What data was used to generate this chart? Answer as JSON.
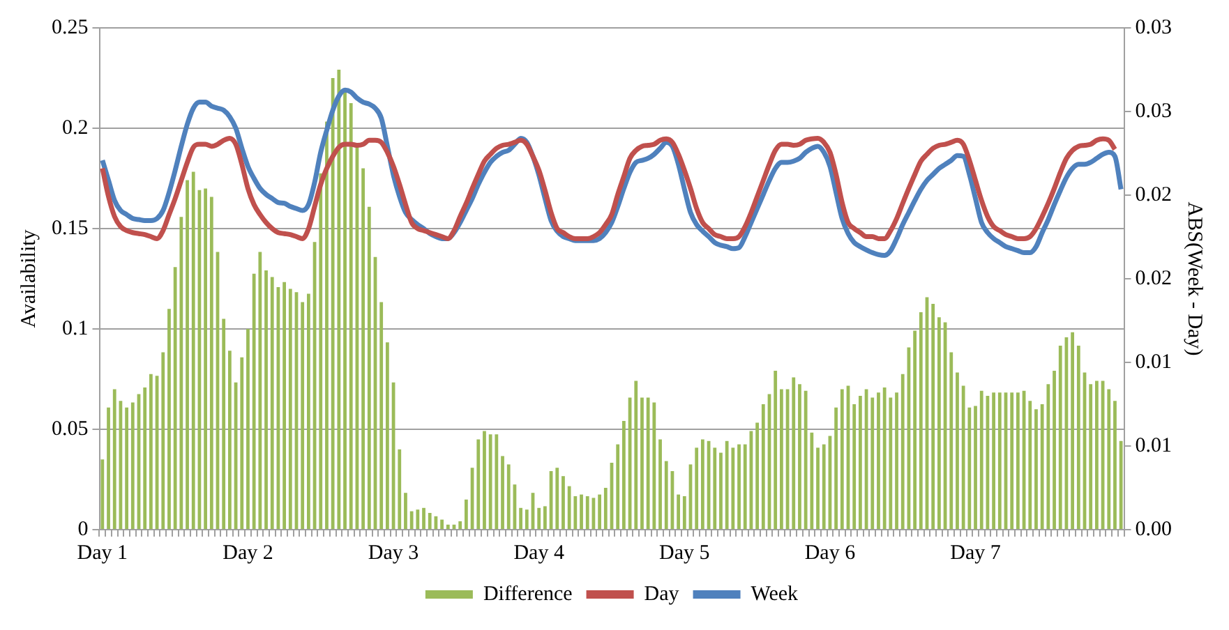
{
  "chart_data": {
    "type": "bar",
    "ylabel": "Availability",
    "y2label": "ABS(Week - Day)",
    "categories": [
      "Day 1",
      null,
      null,
      null,
      null,
      null,
      null,
      null,
      null,
      null,
      null,
      null,
      null,
      null,
      null,
      null,
      null,
      null,
      null,
      null,
      null,
      null,
      null,
      null,
      "Day 2",
      null,
      null,
      null,
      null,
      null,
      null,
      null,
      null,
      null,
      null,
      null,
      null,
      null,
      null,
      null,
      null,
      null,
      null,
      null,
      null,
      null,
      null,
      null,
      "Day 3",
      null,
      null,
      null,
      null,
      null,
      null,
      null,
      null,
      null,
      null,
      null,
      null,
      null,
      null,
      null,
      null,
      null,
      null,
      null,
      null,
      null,
      null,
      null,
      "Day 4",
      null,
      null,
      null,
      null,
      null,
      null,
      null,
      null,
      null,
      null,
      null,
      null,
      null,
      null,
      null,
      null,
      null,
      null,
      null,
      null,
      null,
      null,
      null,
      "Day 5",
      null,
      null,
      null,
      null,
      null,
      null,
      null,
      null,
      null,
      null,
      null,
      null,
      null,
      null,
      null,
      null,
      null,
      null,
      null,
      null,
      null,
      null,
      null,
      "Day 6",
      null,
      null,
      null,
      null,
      null,
      null,
      null,
      null,
      null,
      null,
      null,
      null,
      null,
      null,
      null,
      null,
      null,
      null,
      null,
      null,
      null,
      null,
      null,
      "Day 7",
      null,
      null,
      null,
      null,
      null,
      null,
      null,
      null,
      null,
      null,
      null,
      null,
      null,
      null,
      null,
      null,
      null,
      null,
      null,
      null,
      null,
      null,
      null,
      null
    ],
    "ylim": [
      0,
      0.25
    ],
    "yticks": [
      0,
      0.05,
      {
        "value": 0.1,
        "label": "0.1"
      },
      0.15,
      {
        "value": 0.2,
        "label": "0.2"
      },
      0.25
    ],
    "y2lim": [
      0,
      0.03
    ],
    "y2ticks": [
      {
        "value": 0,
        "label": "0.00"
      },
      {
        "value": 0.005,
        "label": "0.01"
      },
      {
        "value": 0.01,
        "label": "0.01"
      },
      {
        "value": 0.015,
        "label": "0.02"
      },
      {
        "value": 0.02,
        "label": "0.02"
      },
      {
        "value": 0.025,
        "label": "0.03"
      },
      {
        "value": 0.03,
        "label": "0.03"
      }
    ],
    "grid": "y",
    "legend": "bottom",
    "series": [
      {
        "name": "Difference",
        "axis": "y2",
        "color": "#9bbb59",
        "values": [
          0.0042,
          0.0073,
          0.0084,
          0.0077,
          0.0073,
          0.0076,
          0.0081,
          0.0085,
          0.0093,
          0.0092,
          0.0106,
          0.0132,
          0.0157,
          0.0187,
          0.0209,
          0.0214,
          0.0203,
          0.0204,
          0.0199,
          0.0166,
          0.0126,
          0.0107,
          0.0088,
          0.0103,
          0.012,
          0.0153,
          0.0166,
          0.0155,
          0.0151,
          0.0145,
          0.0148,
          0.0144,
          0.0142,
          0.0136,
          0.0141,
          0.0172,
          0.0213,
          0.0244,
          0.027,
          0.0275,
          0.0264,
          0.0255,
          0.023,
          0.0216,
          0.0193,
          0.0163,
          0.0136,
          0.0112,
          0.0088,
          0.0048,
          0.0022,
          0.0011,
          0.0012,
          0.0013,
          0.001,
          0.0008,
          0.0006,
          0.0003,
          0.0003,
          0.0005,
          0.0018,
          0.0037,
          0.0054,
          0.0059,
          0.0057,
          0.0057,
          0.0044,
          0.0039,
          0.0027,
          0.0013,
          0.0012,
          0.0022,
          0.0013,
          0.0014,
          0.0035,
          0.0037,
          0.0032,
          0.0026,
          0.002,
          0.0021,
          0.002,
          0.0019,
          0.0021,
          0.0025,
          0.004,
          0.0051,
          0.0065,
          0.0079,
          0.0089,
          0.0079,
          0.0079,
          0.0076,
          0.0054,
          0.0041,
          0.0035,
          0.0021,
          0.002,
          0.0039,
          0.0049,
          0.0054,
          0.0053,
          0.0049,
          0.0046,
          0.0053,
          0.0049,
          0.0051,
          0.0051,
          0.0059,
          0.0064,
          0.0075,
          0.0081,
          0.0095,
          0.0084,
          0.0084,
          0.0091,
          0.0087,
          0.0083,
          0.0058,
          0.0049,
          0.0051,
          0.0056,
          0.0073,
          0.0084,
          0.0086,
          0.0075,
          0.008,
          0.0084,
          0.0079,
          0.0082,
          0.0085,
          0.0079,
          0.0082,
          0.0093,
          0.0109,
          0.0119,
          0.013,
          0.0139,
          0.0135,
          0.0127,
          0.0124,
          0.0106,
          0.0094,
          0.0086,
          0.0073,
          0.0074,
          0.0083,
          0.008,
          0.0082,
          0.0082,
          0.0082,
          0.0082,
          0.0082,
          0.0083,
          0.0077,
          0.0072,
          0.0075,
          0.0087,
          0.0095,
          0.011,
          0.0115,
          0.0118,
          0.011,
          0.0094,
          0.0087,
          0.0089,
          0.0089,
          0.0084,
          0.0077,
          0.0053
        ]
      },
      {
        "name": "Day",
        "type": "line",
        "color": "#c0504d",
        "values": [
          0.18,
          0.166,
          0.156,
          0.151,
          0.149,
          0.148,
          0.1475,
          0.147,
          0.146,
          0.145,
          0.149,
          0.157,
          0.165,
          0.174,
          0.183,
          0.1905,
          0.192,
          0.192,
          0.191,
          0.192,
          0.194,
          0.195,
          0.192,
          0.182,
          0.17,
          0.162,
          0.157,
          0.153,
          0.15,
          0.148,
          0.1475,
          0.147,
          0.146,
          0.145,
          0.15,
          0.161,
          0.172,
          0.18,
          0.186,
          0.1905,
          0.192,
          0.192,
          0.1915,
          0.192,
          0.194,
          0.194,
          0.193,
          0.188,
          0.181,
          0.172,
          0.162,
          0.153,
          0.15,
          0.149,
          0.148,
          0.147,
          0.146,
          0.145,
          0.149,
          0.156,
          0.1626,
          0.17,
          0.177,
          0.1836,
          0.187,
          0.19,
          0.1915,
          0.192,
          0.193,
          0.194,
          0.192,
          0.186,
          0.179,
          0.169,
          0.158,
          0.15,
          0.148,
          0.146,
          0.145,
          0.145,
          0.145,
          0.146,
          0.148,
          0.152,
          0.157,
          0.167,
          0.176,
          0.185,
          0.189,
          0.191,
          0.1915,
          0.192,
          0.194,
          0.1947,
          0.193,
          0.187,
          0.179,
          0.17,
          0.16,
          0.153,
          0.15,
          0.147,
          0.146,
          0.145,
          0.145,
          0.146,
          0.151,
          0.158,
          0.166,
          0.174,
          0.182,
          0.189,
          0.192,
          0.192,
          0.1915,
          0.192,
          0.194,
          0.1947,
          0.195,
          0.193,
          0.188,
          0.177,
          0.163,
          0.153,
          0.15,
          0.148,
          0.146,
          0.146,
          0.145,
          0.145,
          0.149,
          0.155,
          0.1626,
          0.17,
          0.177,
          0.1836,
          0.187,
          0.19,
          0.1915,
          0.192,
          0.193,
          0.194,
          0.192,
          0.184,
          0.174,
          0.164,
          0.156,
          0.151,
          0.149,
          0.147,
          0.146,
          0.145,
          0.145,
          0.146,
          0.15,
          0.156,
          0.1626,
          0.17,
          0.178,
          0.185,
          0.189,
          0.191,
          0.1915,
          0.192,
          0.194,
          0.1947,
          0.194,
          0.1895,
          null
        ]
      },
      {
        "name": "Week",
        "type": "line",
        "color": "#4f81bd",
        "values": [
          0.184,
          0.174,
          0.164,
          0.159,
          0.157,
          0.155,
          0.1545,
          0.154,
          0.154,
          0.155,
          0.159,
          0.168,
          0.179,
          0.191,
          0.202,
          0.21,
          0.213,
          0.213,
          0.211,
          0.21,
          0.209,
          0.2057,
          0.2,
          0.19,
          0.181,
          0.175,
          0.17,
          0.167,
          0.165,
          0.163,
          0.1626,
          0.161,
          0.16,
          0.159,
          0.162,
          0.173,
          0.188,
          0.199,
          0.209,
          0.216,
          0.219,
          0.218,
          0.215,
          0.213,
          0.212,
          0.21,
          0.205,
          0.191,
          0.1766,
          0.166,
          0.158,
          0.1545,
          0.152,
          0.15,
          0.1475,
          0.146,
          0.145,
          0.145,
          0.148,
          0.153,
          0.159,
          0.165,
          0.172,
          0.178,
          0.183,
          0.186,
          0.188,
          0.189,
          0.192,
          0.195,
          0.193,
          0.186,
          0.1766,
          0.165,
          0.154,
          0.1487,
          0.146,
          0.145,
          0.144,
          0.144,
          0.144,
          0.144,
          0.145,
          0.148,
          0.153,
          0.161,
          0.17,
          0.178,
          0.183,
          0.184,
          0.185,
          0.187,
          0.19,
          0.193,
          0.191,
          0.182,
          0.1696,
          0.158,
          0.152,
          0.1487,
          0.146,
          0.143,
          0.1417,
          0.141,
          0.14,
          0.1405,
          0.146,
          0.153,
          0.16,
          0.167,
          0.174,
          0.18,
          0.183,
          0.183,
          0.1836,
          0.185,
          0.188,
          0.19,
          0.191,
          0.188,
          0.181,
          0.168,
          0.155,
          0.1475,
          0.143,
          0.141,
          0.1394,
          0.138,
          0.137,
          0.1366,
          0.139,
          0.145,
          0.152,
          0.158,
          0.164,
          0.1696,
          0.174,
          0.177,
          0.18,
          0.182,
          0.184,
          0.1864,
          0.186,
          0.177,
          0.165,
          0.153,
          0.148,
          0.145,
          0.143,
          0.141,
          0.14,
          0.139,
          0.138,
          0.138,
          0.141,
          0.148,
          0.1545,
          0.162,
          0.169,
          0.1755,
          0.18,
          0.182,
          0.182,
          0.183,
          0.185,
          0.187,
          0.188,
          0.186,
          0.1696
        ]
      }
    ]
  }
}
